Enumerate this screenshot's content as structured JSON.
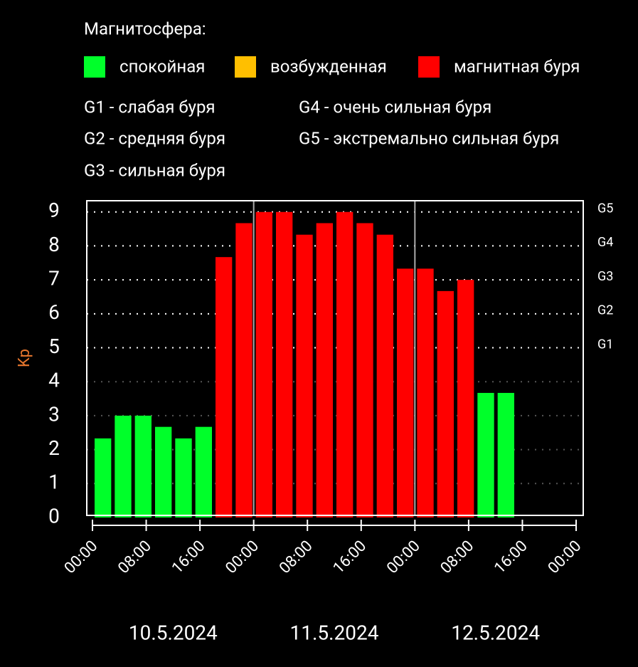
{
  "chart_data": {
    "type": "bar",
    "legend_title": "Магнитосфера:",
    "legend": [
      {
        "name": "спокойная",
        "color": "#00ff2a"
      },
      {
        "name": "возбужденная",
        "color": "#ffbf00"
      },
      {
        "name": "магнитная буря",
        "color": "#ff0000"
      }
    ],
    "storm_levels": [
      "G1 - слабая буря",
      "G2 - средняя буря",
      "G3 - сильная буря",
      "G4 - очень сильная буря",
      "G5 - экстремально сильная буря"
    ],
    "ylabel": "Kp",
    "categories": [
      null,
      null,
      null,
      null,
      null,
      null,
      null,
      null,
      null,
      null,
      null,
      null,
      null,
      null,
      null,
      null,
      null,
      null,
      null,
      null,
      null,
      null,
      null,
      null
    ],
    "values": [
      2.33,
      3,
      3,
      2.67,
      2.33,
      2.67,
      7.67,
      8.67,
      9,
      9,
      8.33,
      8.67,
      9,
      8.67,
      8.33,
      7.33,
      7.33,
      6.67,
      7,
      3.67,
      3.67,
      null,
      null,
      null
    ],
    "colors": [
      "#00ff2a",
      "#00ff2a",
      "#00ff2a",
      "#00ff2a",
      "#00ff2a",
      "#00ff2a",
      "#ff0000",
      "#ff0000",
      "#ff0000",
      "#ff0000",
      "#ff0000",
      "#ff0000",
      "#ff0000",
      "#ff0000",
      "#ff0000",
      "#ff0000",
      "#ff0000",
      "#ff0000",
      "#ff0000",
      "#00ff2a",
      "#00ff2a",
      null,
      null,
      null
    ],
    "ylim": [
      0,
      9.33
    ],
    "yticks": [
      0,
      1,
      2,
      3,
      4,
      5,
      6,
      7,
      8,
      9
    ],
    "g_levels": [
      {
        "value": 5,
        "label": "G1"
      },
      {
        "value": 6,
        "label": "G2"
      },
      {
        "value": 7,
        "label": "G3"
      },
      {
        "value": 8,
        "label": "G4"
      },
      {
        "value": 9,
        "label": "G5"
      }
    ],
    "xlim": [
      0,
      72
    ],
    "xticks": [
      {
        "value": 0,
        "label": "00:00"
      },
      {
        "value": 8,
        "label": "08:00"
      },
      {
        "value": 16,
        "label": "16:00"
      },
      {
        "value": 24,
        "label": "00:00"
      },
      {
        "value": 32,
        "label": "08:00"
      },
      {
        "value": 40,
        "label": "16:00"
      },
      {
        "value": 48,
        "label": "00:00"
      },
      {
        "value": 56,
        "label": "08:00"
      },
      {
        "value": 64,
        "label": "16:00"
      },
      {
        "value": 72,
        "label": "00:00"
      }
    ],
    "dates": [
      "10.5.2024",
      "11.5.2024",
      "12.5.2024"
    ]
  }
}
